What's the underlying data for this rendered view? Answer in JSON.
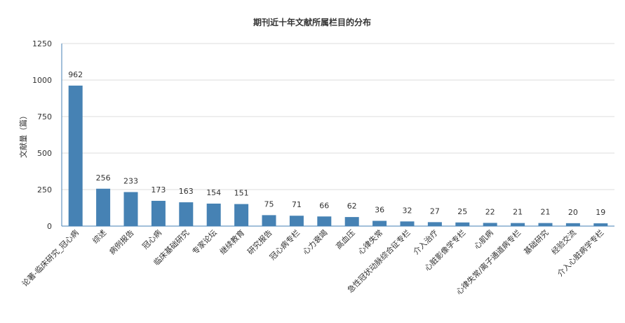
{
  "chart_data": {
    "type": "bar",
    "title": "期刊近十年文献所属栏目的分布",
    "ylabel": "文献量（篇）",
    "xlabel": "",
    "ylim": [
      0,
      1250
    ],
    "yticks": [
      0,
      250,
      500,
      750,
      1000,
      1250
    ],
    "grid": true,
    "bar_color": "#4682B4",
    "categories": [
      "论著-临床研究_冠心病",
      "综述",
      "病例报告",
      "冠心病",
      "临床基础研究",
      "专家论坛",
      "继续教育",
      "研究报告",
      "冠心病专栏",
      "心力衰竭",
      "高血压",
      "心律失常",
      "急性冠状动脉综合征专栏",
      "介入治疗",
      "心脏影像学专栏",
      "心肌病",
      "心律失常/离子通道病专栏",
      "基础研究",
      "经验交流",
      "介入心脏病学专栏"
    ],
    "values": [
      962,
      256,
      233,
      173,
      163,
      154,
      151,
      75,
      71,
      66,
      62,
      36,
      32,
      27,
      25,
      22,
      21,
      21,
      20,
      19
    ]
  }
}
